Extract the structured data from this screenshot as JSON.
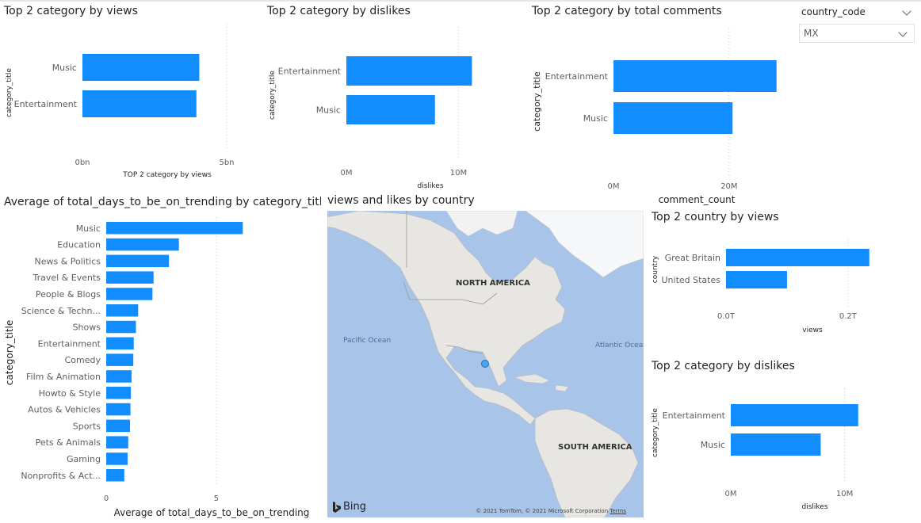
{
  "colors": {
    "bar": "#118dff",
    "water": "#a9c4e9",
    "land": "#e8e6e2",
    "ice": "#f6f7f8",
    "dot": "#4aa6ee"
  },
  "slicer": {
    "label": "country_code",
    "value": "MX"
  },
  "map": {
    "title": "views and likes by country",
    "labels": {
      "north_america": "NORTH AMERICA",
      "south_america": "SOUTH AMERICA",
      "pacific": "Pacific Ocean",
      "atlantic": "Atlantic Ocean"
    },
    "bing": "Bing",
    "copyright": "© 2021 TomTom, © 2021 Microsoft Corporation",
    "terms": "Terms"
  },
  "chart_data": [
    {
      "id": "views",
      "type": "bar",
      "title": "Top 2 category by views",
      "categories": [
        "Music",
        "Entertainment"
      ],
      "values": [
        4.05,
        3.95
      ],
      "xlabel": "TOP 2 category by views",
      "ylabel": "category_title",
      "xlim": [
        0,
        5
      ],
      "ticks": [
        0,
        5
      ],
      "tick_labels": [
        "0bn",
        "5bn"
      ]
    },
    {
      "id": "dislikes",
      "type": "bar",
      "title": "Top 2 category by dislikes",
      "categories": [
        "Entertainment",
        "Music"
      ],
      "values": [
        11.2,
        7.9
      ],
      "xlabel": "dislikes",
      "ylabel": "category_title",
      "xlim": [
        0,
        14
      ],
      "ticks": [
        0,
        10
      ],
      "tick_labels": [
        "0M",
        "10M"
      ]
    },
    {
      "id": "comments",
      "type": "bar",
      "title": "Top 2 category by total comments",
      "categories": [
        "Entertainment",
        "Music"
      ],
      "values": [
        28.2,
        20.6
      ],
      "xlabel": "comment_count",
      "ylabel": "category_title",
      "xlim": [
        0,
        34
      ],
      "ticks": [
        0,
        20
      ],
      "tick_labels": [
        "0M",
        "20M"
      ]
    },
    {
      "id": "trending",
      "type": "bar",
      "title": "Average of total_days_to_be_on_trending by category_title",
      "categories": [
        "Music",
        "Education",
        "News & Politics",
        "Travel & Events",
        "People & Blogs",
        "Science & Techn...",
        "Shows",
        "Entertainment",
        "Comedy",
        "Film & Animation",
        "Howto & Style",
        "Autos & Vehicles",
        "Sports",
        "Pets & Animals",
        "Gaming",
        "Nonprofits & Act..."
      ],
      "values": [
        6.2,
        3.3,
        2.85,
        2.15,
        2.1,
        1.45,
        1.35,
        1.25,
        1.23,
        1.15,
        1.12,
        1.1,
        1.08,
        1.0,
        0.97,
        0.82
      ],
      "xlabel": "Average of total_days_to_be_on_trending",
      "ylabel": "category_title",
      "xlim": [
        0,
        7.7
      ],
      "ticks": [
        0,
        5
      ],
      "tick_labels": [
        "0",
        "5"
      ]
    },
    {
      "id": "country",
      "type": "bar",
      "title": "Top 2 country by views",
      "categories": [
        "Great Britain",
        "United States"
      ],
      "values": [
        0.235,
        0.1
      ],
      "xlabel": "views",
      "ylabel": "country",
      "xlim": [
        0,
        0.26
      ],
      "ticks": [
        0,
        0.2
      ],
      "tick_labels": [
        "0.0T",
        "0.2T"
      ]
    },
    {
      "id": "dislikes2",
      "type": "bar",
      "title": "Top 2 category by dislikes",
      "categories": [
        "Entertainment",
        "Music"
      ],
      "values": [
        11.2,
        7.9
      ],
      "xlabel": "dislikes",
      "ylabel": "category_title",
      "xlim": [
        0,
        14
      ],
      "ticks": [
        0,
        10
      ],
      "tick_labels": [
        "0M",
        "10M"
      ]
    }
  ]
}
